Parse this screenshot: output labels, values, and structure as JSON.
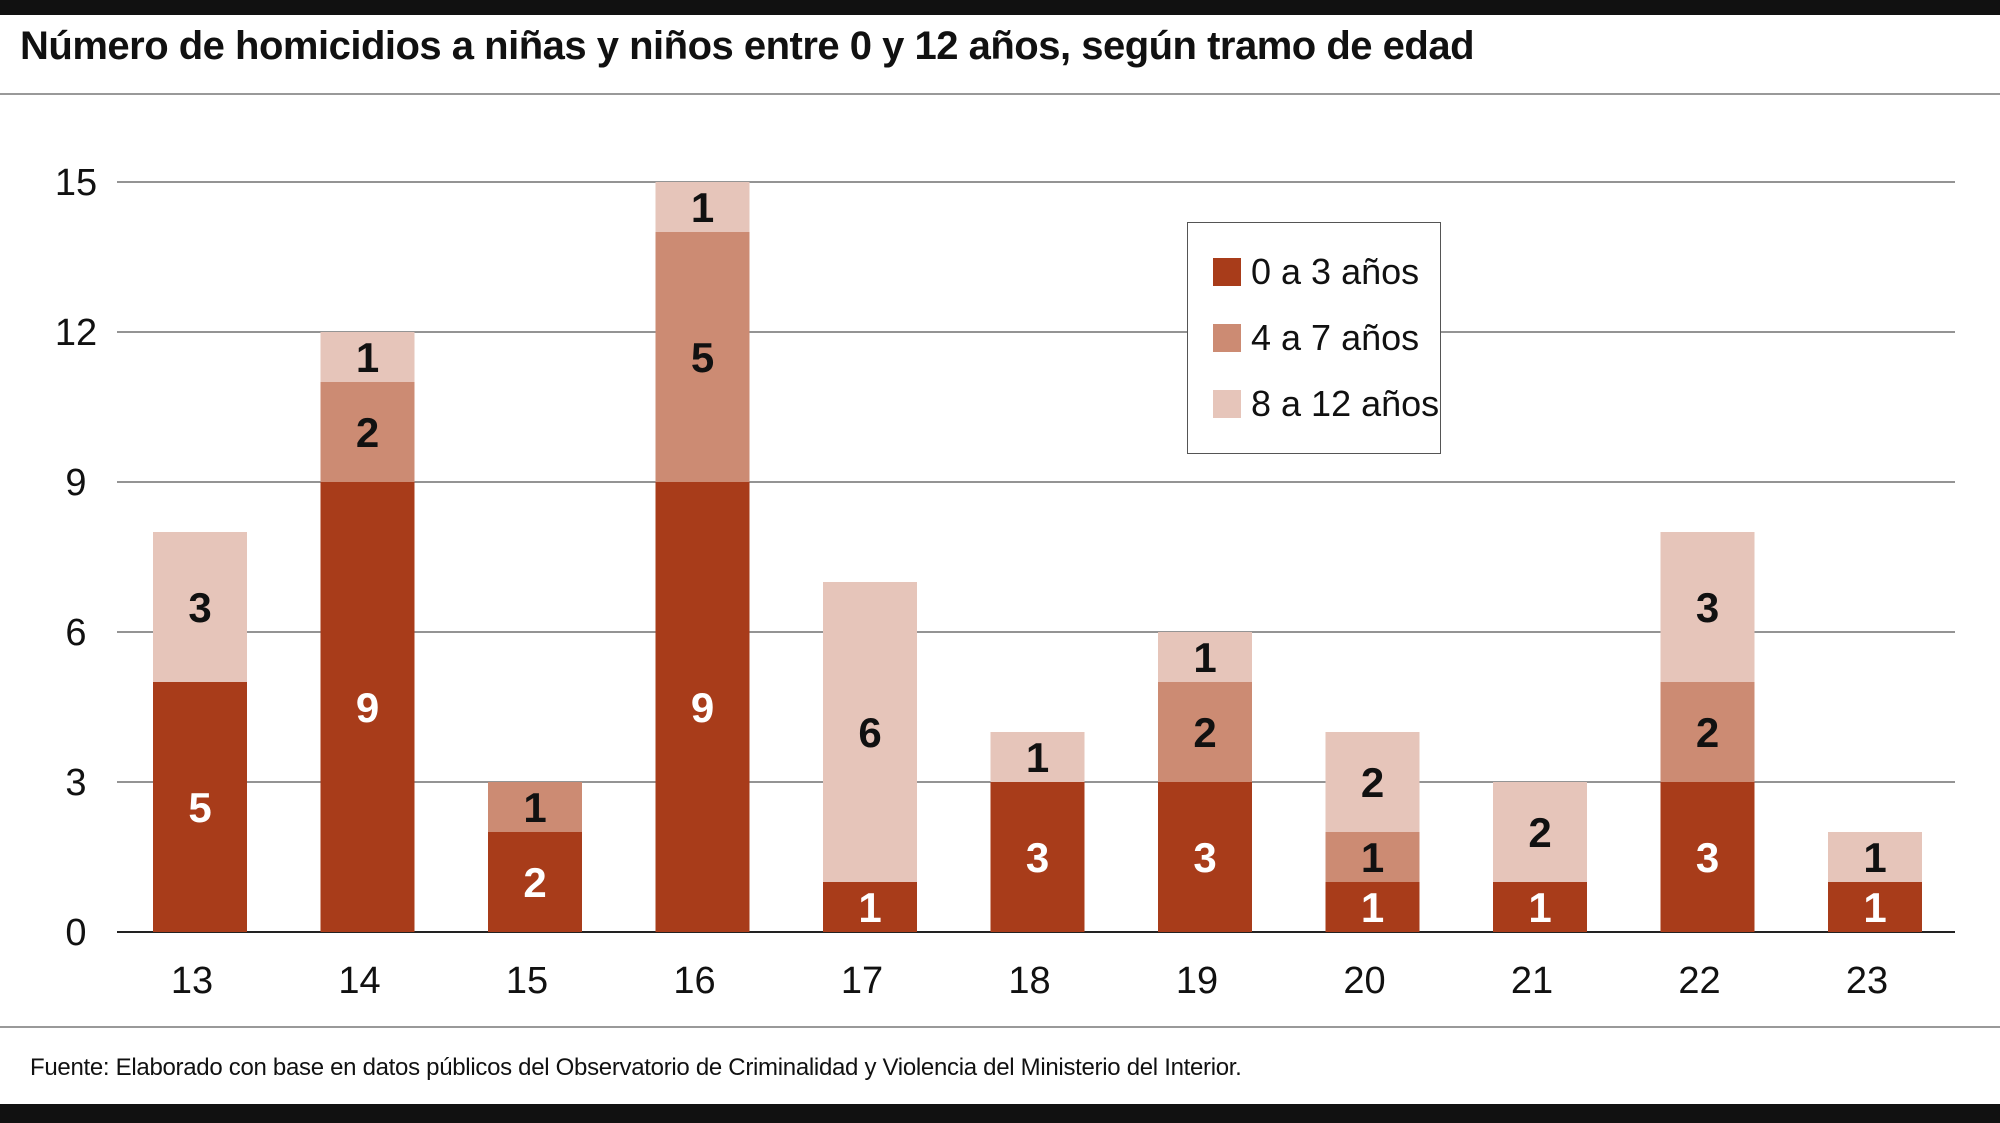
{
  "title": "Número de homicidios a niñas y niños entre 0 y 12 años, según tramo de edad",
  "footer": "Fuente: Elaborado con base en datos públicos del Observatorio de Criminalidad y Violencia del Ministerio del Interior.",
  "chart_data": {
    "type": "bar",
    "stacked": true,
    "title": "Número de homicidios a niñas y niños entre 0 y 12 años, según tramo de edad",
    "xlabel": "",
    "ylabel": "",
    "ylim": [
      0,
      15
    ],
    "yticks": [
      "0",
      "3",
      "6",
      "9",
      "12",
      "15"
    ],
    "grid": true,
    "legend_position": "top-right",
    "categories": [
      "13",
      "14",
      "15",
      "16",
      "17",
      "18",
      "19",
      "20",
      "21",
      "22",
      "23"
    ],
    "series": [
      {
        "name": "0 a 3 años",
        "color": "#A83C1A",
        "values": [
          5,
          9,
          2,
          9,
          1,
          3,
          3,
          1,
          1,
          3,
          1
        ]
      },
      {
        "name": "4 a 7 años",
        "color": "#CC8B73",
        "values": [
          0,
          2,
          1,
          5,
          0,
          0,
          2,
          1,
          0,
          2,
          0
        ]
      },
      {
        "name": "8 a 12 años",
        "color": "#E6C5BA",
        "values": [
          3,
          1,
          0,
          1,
          6,
          1,
          1,
          2,
          2,
          3,
          1
        ]
      }
    ]
  }
}
